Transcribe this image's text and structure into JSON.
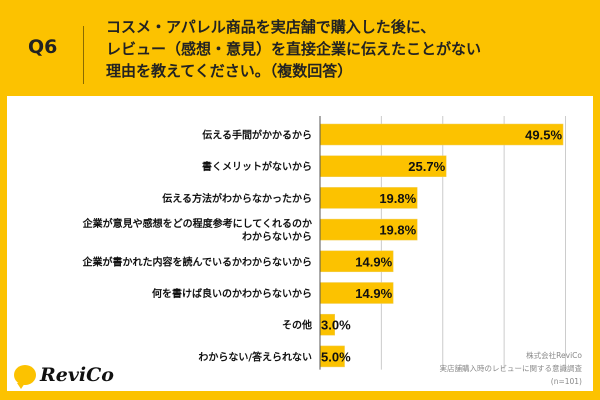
{
  "header": {
    "question_no": "Q6",
    "title": "コスメ・アパレル商品を実店舗で購入した後に、\nレビュー（感想・意見）を直接企業に伝えたことがない\n理由を教えてください。（複数回答）"
  },
  "chart_data": {
    "type": "bar",
    "orientation": "horizontal",
    "categories": [
      "伝える手間がかかるから",
      "書くメリットがないから",
      "伝える方法がわからなかったから",
      "企業が意見や感想をどの程度参考にしてくれるのか\nわからないから",
      "企業が書かれた内容を読んでいるかわからないから",
      "何を書けば良いのかわからないから",
      "その他",
      "わからない/答えられない"
    ],
    "values": [
      49.5,
      25.7,
      19.8,
      19.8,
      14.9,
      14.9,
      3.0,
      5.0
    ],
    "value_labels": [
      "49.5%",
      "25.7%",
      "19.8%",
      "19.8%",
      "14.9%",
      "14.9%",
      "3.0%",
      "5.0%"
    ],
    "xlim": [
      0,
      55
    ],
    "gridlines": [
      12.5,
      25,
      37.5,
      50
    ],
    "grid": true,
    "bar_color": "#FCC200"
  },
  "footer": {
    "company": "株式会社ReviCo",
    "survey": "実店舗購入時のレビューに関する意識調査",
    "sample": "(n=101)",
    "logo": "ReviCo"
  }
}
